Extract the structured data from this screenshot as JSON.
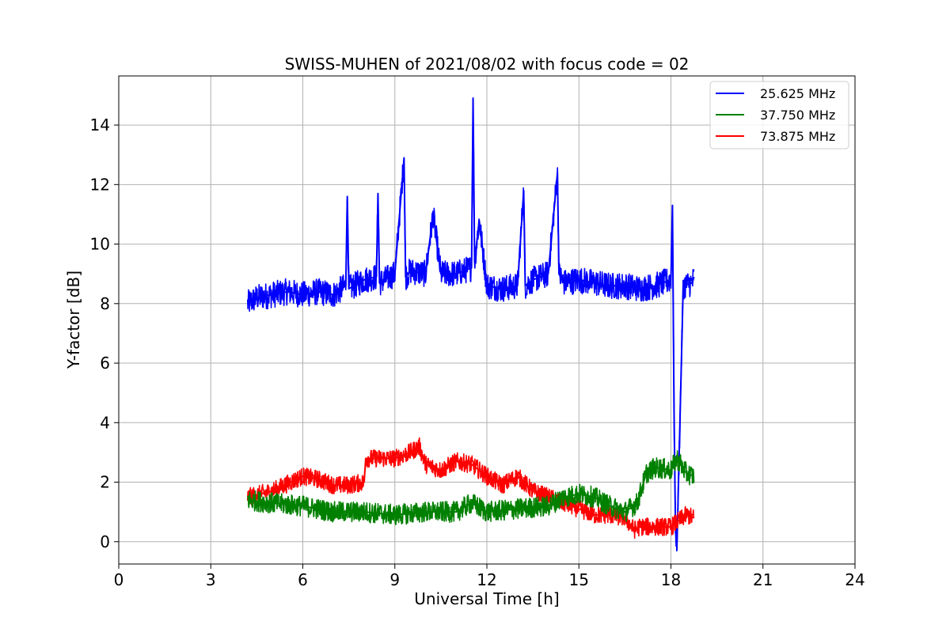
{
  "chart_data": {
    "type": "line",
    "title": "SWISS-MUHEN of 2021/08/02 with focus code = 02",
    "xlabel": "Universal Time [h]",
    "ylabel": "Y-factor [dB]",
    "xlim": [
      0,
      24
    ],
    "ylim": [
      -0.75,
      15.65
    ],
    "xticks": [
      0,
      3,
      6,
      9,
      12,
      15,
      18,
      21,
      24
    ],
    "xtick_labels": [
      "0",
      "3",
      "6",
      "9",
      "12",
      "15",
      "18",
      "21",
      "24"
    ],
    "yticks": [
      0,
      2,
      4,
      6,
      8,
      10,
      12,
      14
    ],
    "ytick_labels": [
      "0",
      "2",
      "4",
      "6",
      "8",
      "10",
      "12",
      "14"
    ],
    "grid": true,
    "legend_position": "top-right",
    "series": [
      {
        "name": "25.625 MHz",
        "color": "#0000ff",
        "x": [
          4.2,
          4.5,
          5.0,
          5.5,
          6.0,
          6.5,
          7.0,
          7.4,
          7.45,
          7.5,
          8.0,
          8.4,
          8.45,
          8.5,
          9.0,
          9.3,
          9.35,
          9.5,
          10.0,
          10.25,
          10.5,
          11.0,
          11.5,
          11.55,
          11.6,
          11.75,
          12.0,
          12.5,
          13.0,
          13.2,
          13.25,
          13.5,
          14.0,
          14.3,
          14.35,
          14.5,
          15.0,
          15.5,
          16.0,
          16.5,
          17.0,
          17.5,
          18.0,
          18.05,
          18.1,
          18.15,
          18.2,
          18.4,
          18.7,
          18.75
        ],
        "values": [
          8.0,
          8.2,
          8.3,
          8.4,
          8.3,
          8.4,
          8.3,
          8.6,
          11.6,
          8.5,
          8.8,
          8.9,
          11.7,
          8.7,
          9.0,
          12.9,
          8.9,
          9.1,
          9.0,
          11.0,
          9.0,
          9.0,
          9.2,
          14.9,
          9.4,
          10.8,
          8.6,
          8.5,
          8.6,
          11.8,
          8.6,
          8.8,
          9.0,
          12.4,
          9.0,
          8.7,
          8.8,
          8.7,
          8.6,
          8.6,
          8.5,
          8.6,
          8.8,
          11.3,
          4.5,
          0.3,
          0.0,
          8.6,
          8.7,
          8.9
        ],
        "noise_band_db": 0.9
      },
      {
        "name": "37.750 MHz",
        "color": "#008000",
        "x": [
          4.2,
          5.0,
          6.0,
          7.0,
          8.0,
          9.0,
          10.0,
          11.0,
          11.5,
          12.0,
          13.0,
          14.0,
          14.5,
          15.0,
          15.5,
          16.0,
          16.5,
          16.9,
          17.2,
          17.5,
          18.0,
          18.2,
          18.5,
          18.75
        ],
        "values": [
          1.4,
          1.3,
          1.2,
          1.0,
          1.0,
          0.9,
          1.0,
          1.0,
          1.3,
          1.0,
          1.1,
          1.2,
          1.5,
          1.6,
          1.5,
          1.2,
          1.0,
          1.3,
          2.3,
          2.5,
          2.4,
          2.8,
          2.3,
          2.2
        ],
        "noise_band_db": 0.7
      },
      {
        "name": "73.875 MHz",
        "color": "#ff0000",
        "x": [
          4.2,
          5.0,
          6.0,
          6.5,
          7.0,
          7.5,
          8.0,
          8.05,
          8.5,
          9.0,
          9.5,
          9.8,
          10.0,
          10.5,
          11.0,
          11.5,
          12.0,
          12.5,
          13.0,
          13.5,
          14.0,
          14.5,
          15.0,
          15.5,
          16.0,
          16.5,
          16.8,
          17.0,
          17.5,
          18.0,
          18.5,
          18.75
        ],
        "values": [
          1.5,
          1.7,
          2.2,
          2.1,
          1.9,
          1.9,
          2.0,
          2.8,
          2.8,
          2.8,
          3.0,
          3.2,
          2.6,
          2.4,
          2.7,
          2.6,
          2.2,
          1.9,
          2.2,
          1.7,
          1.5,
          1.3,
          1.1,
          0.9,
          0.9,
          0.8,
          0.4,
          0.5,
          0.5,
          0.5,
          0.9,
          0.8
        ],
        "noise_band_db": 0.6
      }
    ]
  }
}
